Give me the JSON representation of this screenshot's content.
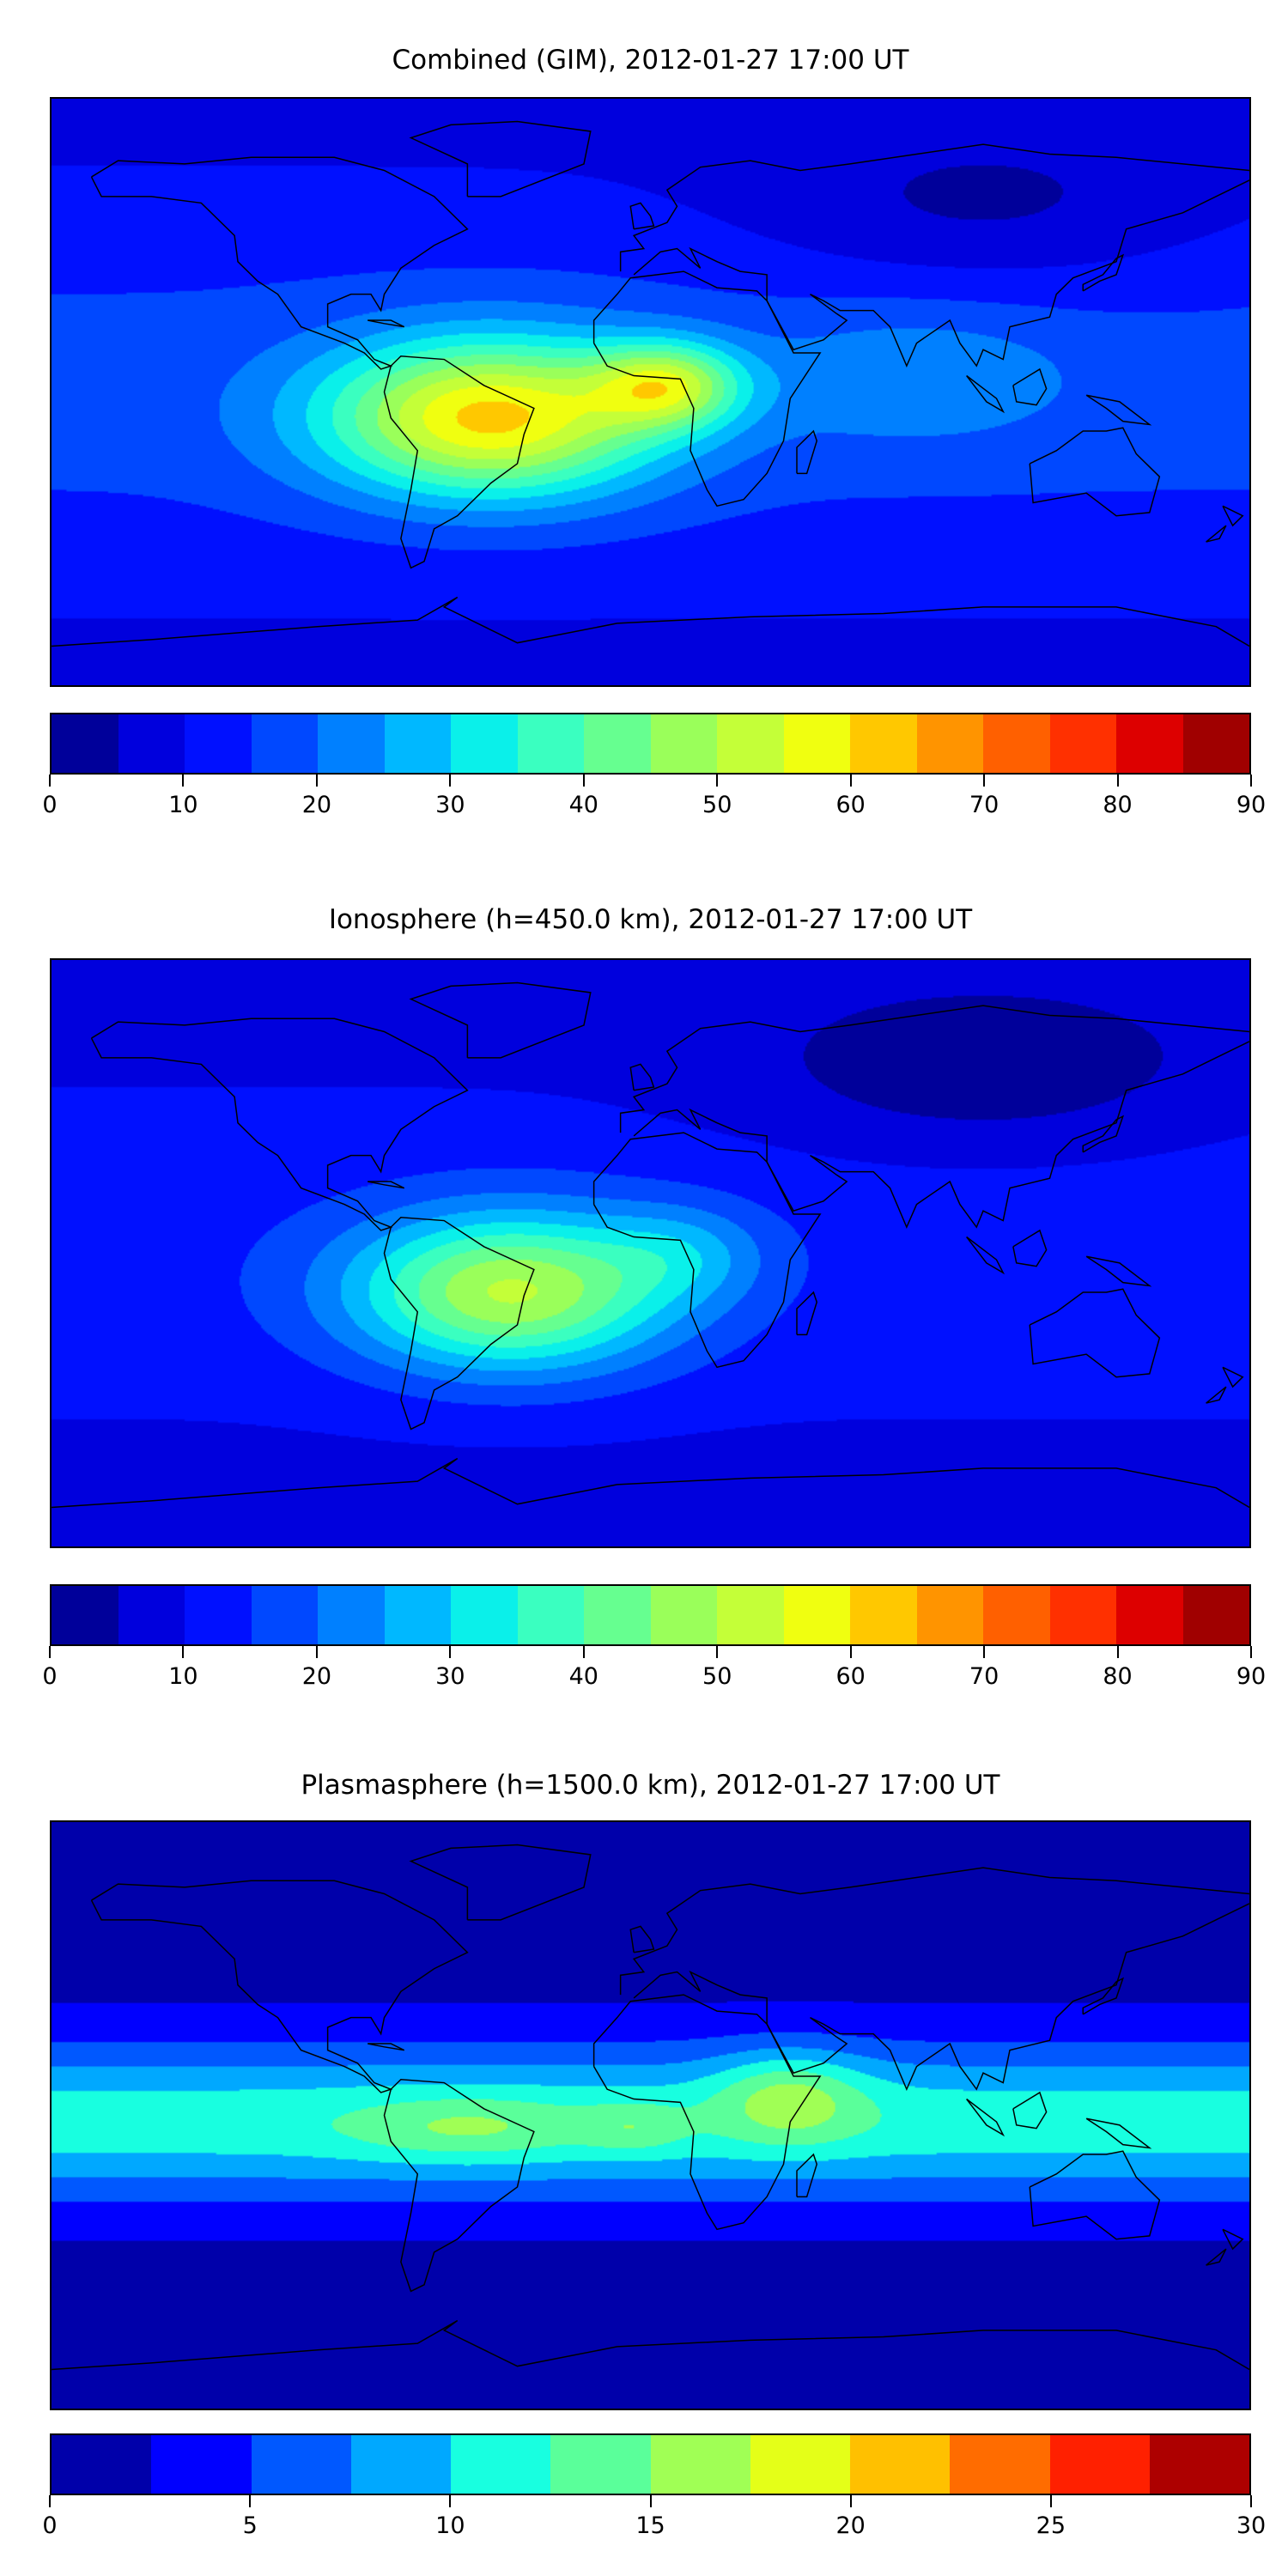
{
  "chart_data": [
    {
      "type": "heatmap",
      "title": "Combined (GIM), 2012-01-27 17:00 UT",
      "xlim": [
        -180,
        180
      ],
      "ylim": [
        -90,
        90
      ],
      "colorbar": {
        "levels": [
          0,
          5,
          10,
          15,
          20,
          25,
          30,
          35,
          40,
          45,
          50,
          55,
          60,
          65,
          70,
          75,
          80,
          85,
          90
        ],
        "tick_labels": [
          "0",
          "10",
          "20",
          "30",
          "40",
          "50",
          "60",
          "70",
          "80",
          "90"
        ],
        "tick_values": [
          0,
          10,
          20,
          30,
          40,
          50,
          60,
          70,
          80,
          90
        ],
        "colors": [
          "#00009a",
          "#0000dd",
          "#0010ff",
          "#0048ff",
          "#0080ff",
          "#00b8ff",
          "#0af0ea",
          "#3affc0",
          "#66ff90",
          "#9aff5a",
          "#c4ff38",
          "#f0ff10",
          "#ffc800",
          "#ff9400",
          "#ff6000",
          "#ff3000",
          "#dd0000",
          "#a00000"
        ]
      },
      "field_model": {
        "base_equator": 17,
        "base_pole": 9,
        "north_east_low": 7,
        "peaks": [
          {
            "lon": -48,
            "lat": -8,
            "value": 45,
            "sx": 50,
            "sy": 24
          },
          {
            "lon": 5,
            "lat": 2,
            "value": 30,
            "sx": 22,
            "sy": 13
          },
          {
            "lon": 80,
            "lat": 5,
            "value": 8,
            "sx": 45,
            "sy": 20
          }
        ]
      }
    },
    {
      "type": "heatmap",
      "title": "Ionosphere  (h=450.0 km), 2012-01-27 17:00 UT",
      "xlim": [
        -180,
        180
      ],
      "ylim": [
        -90,
        90
      ],
      "colorbar": {
        "levels": [
          0,
          5,
          10,
          15,
          20,
          25,
          30,
          35,
          40,
          45,
          50,
          55,
          60,
          65,
          70,
          75,
          80,
          85,
          90
        ],
        "tick_labels": [
          "0",
          "10",
          "20",
          "30",
          "40",
          "50",
          "60",
          "70",
          "80",
          "90"
        ],
        "tick_values": [
          0,
          10,
          20,
          30,
          40,
          50,
          60,
          70,
          80,
          90
        ],
        "colors": [
          "#00009a",
          "#0000dd",
          "#0010ff",
          "#0048ff",
          "#0080ff",
          "#00b8ff",
          "#0af0ea",
          "#3affc0",
          "#66ff90",
          "#9aff5a",
          "#c4ff38",
          "#f0ff10",
          "#ffc800",
          "#ff9400",
          "#ff6000",
          "#ff3000",
          "#dd0000",
          "#a00000"
        ]
      },
      "field_model": {
        "base_equator": 13,
        "base_pole": 8,
        "north_east_low": 8,
        "peaks": [
          {
            "lon": -42,
            "lat": -12,
            "value": 38,
            "sx": 48,
            "sy": 24
          },
          {
            "lon": 10,
            "lat": 0,
            "value": 10,
            "sx": 25,
            "sy": 15
          }
        ]
      }
    },
    {
      "type": "heatmap",
      "title": "Plasmasphere (h=1500.0 km), 2012-01-27 17:00 UT",
      "xlim": [
        -180,
        180
      ],
      "ylim": [
        -90,
        90
      ],
      "colorbar": {
        "levels": [
          0,
          2.5,
          5,
          7.5,
          10,
          12.5,
          15,
          17.5,
          20,
          22.5,
          25,
          27.5,
          30
        ],
        "tick_labels": [
          "0",
          "5",
          "10",
          "15",
          "20",
          "25",
          "30"
        ],
        "tick_values": [
          0,
          5,
          10,
          15,
          20,
          25,
          30
        ],
        "colors": [
          "#0000aa",
          "#0000ff",
          "#0058ff",
          "#00a8ff",
          "#18ffe0",
          "#5aff9a",
          "#a0ff55",
          "#e4ff18",
          "#ffc000",
          "#ff6c00",
          "#ff2000",
          "#ad0000"
        ]
      },
      "field_model": {
        "band": true,
        "base_equator": 11.5,
        "base_pole": 1.5,
        "north_east_low": 0,
        "peaks": [
          {
            "lon": 42,
            "lat": 6,
            "value": 6,
            "sx": 22,
            "sy": 14
          },
          {
            "lon": -55,
            "lat": -4,
            "value": 4,
            "sx": 35,
            "sy": 10
          },
          {
            "lon": -5,
            "lat": -4,
            "value": 3,
            "sx": 15,
            "sy": 8
          }
        ]
      }
    }
  ]
}
